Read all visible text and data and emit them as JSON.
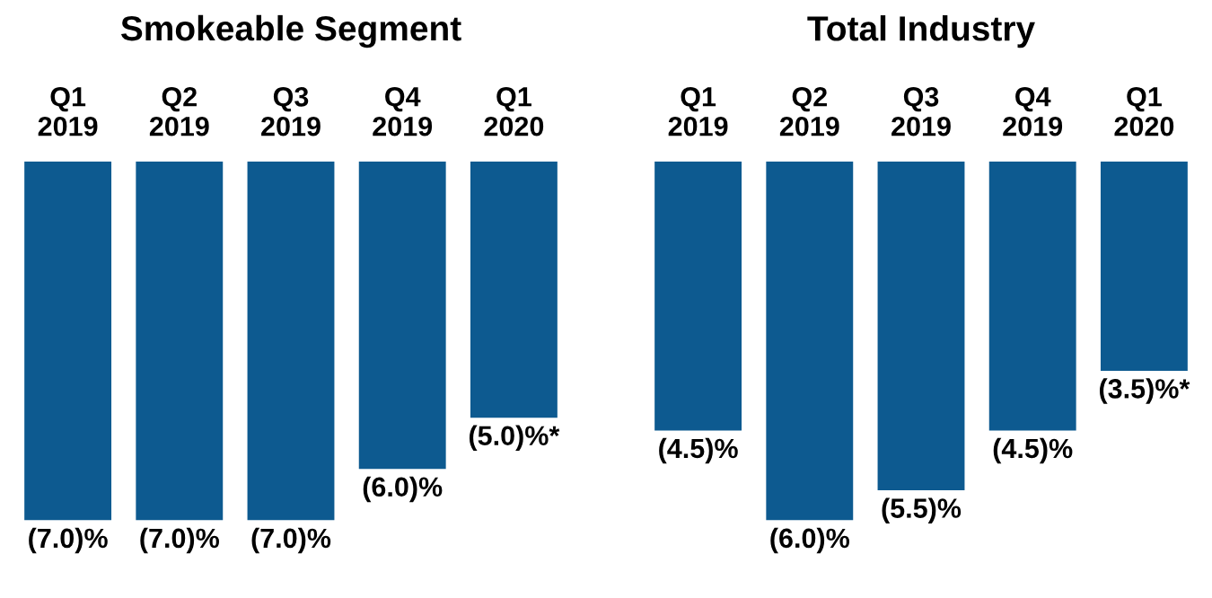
{
  "chart_data": [
    {
      "type": "bar",
      "title": "Smokeable Segment",
      "categories": [
        "Q1\n2019",
        "Q2\n2019",
        "Q3\n2019",
        "Q4\n2019",
        "Q1\n2020"
      ],
      "values": [
        -7.0,
        -7.0,
        -7.0,
        -6.0,
        -5.0
      ],
      "value_labels": [
        "(7.0)%",
        "(7.0)%",
        "(7.0)%",
        "(6.0)%",
        "(5.0)%*"
      ],
      "color": "#0d5a90",
      "ylim": [
        -7.0,
        0
      ],
      "tick_labels": "x"
    },
    {
      "type": "bar",
      "title": "Total Industry",
      "categories": [
        "Q1\n2019",
        "Q2\n2019",
        "Q3\n2019",
        "Q4\n2019",
        "Q1\n2020"
      ],
      "values": [
        -4.5,
        -6.0,
        -5.5,
        -4.5,
        -3.5
      ],
      "value_labels": [
        "(4.5)%",
        "(6.0)%",
        "(5.5)%",
        "(4.5)%",
        "(3.5)%*"
      ],
      "color": "#0d5a90",
      "ylim": [
        -6.0,
        0
      ],
      "tick_labels": "x"
    }
  ]
}
